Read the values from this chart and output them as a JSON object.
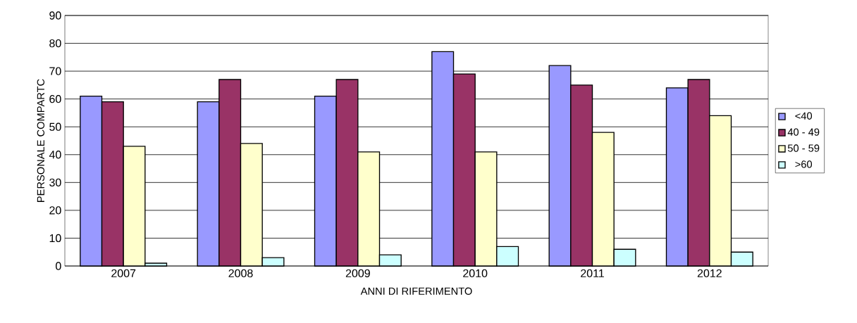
{
  "chart_data": {
    "type": "bar",
    "xlabel": "ANNI DI RIFERIMENTO",
    "ylabel": "PERSONALE COMPARTC",
    "categories": [
      "2007",
      "2008",
      "2009",
      "2010",
      "2011",
      "2012"
    ],
    "series": [
      {
        "name": "<40",
        "color": "#9999ff",
        "values": [
          61,
          59,
          61,
          77,
          72,
          64
        ]
      },
      {
        "name": "40 - 49",
        "color": "#993366",
        "values": [
          59,
          67,
          67,
          69,
          65,
          67
        ]
      },
      {
        "name": "50 - 59",
        "color": "#ffffcc",
        "values": [
          43,
          44,
          41,
          41,
          48,
          54
        ]
      },
      {
        "name": ">60",
        "color": "#ccffff",
        "values": [
          1,
          3,
          4,
          7,
          6,
          5
        ]
      }
    ],
    "ylim": [
      0,
      90
    ],
    "yticks": [
      0,
      10,
      20,
      30,
      40,
      50,
      60,
      70,
      80,
      90
    ],
    "grid": "y",
    "legend": "right"
  }
}
